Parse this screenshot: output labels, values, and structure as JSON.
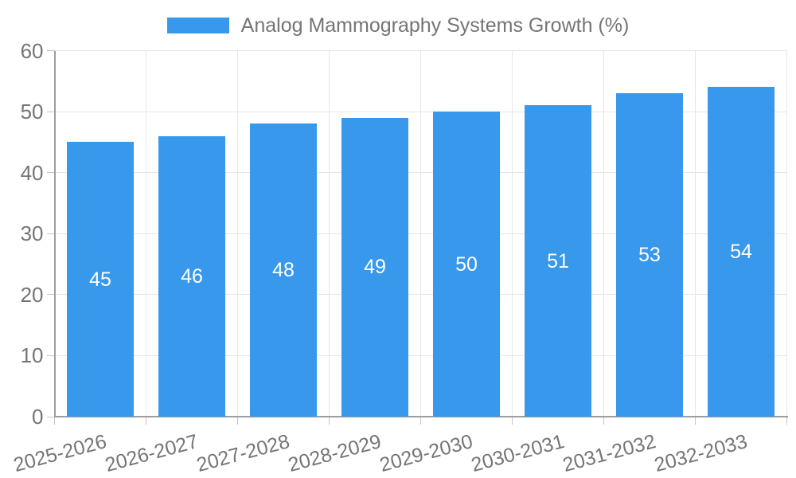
{
  "chart_data": {
    "type": "bar",
    "title": "Analog Mammography Systems Growth (%)",
    "legend_position": "top",
    "categories": [
      "2025-2026",
      "2026-2027",
      "2027-2028",
      "2028-2029",
      "2029-2030",
      "2030-2031",
      "2031-2032",
      "2032-2033"
    ],
    "values": [
      45,
      46,
      48,
      49,
      50,
      51,
      53,
      54
    ],
    "value_labels": [
      "45",
      "46",
      "48",
      "49",
      "50",
      "51",
      "53",
      "54"
    ],
    "xlabel": "",
    "ylabel": "",
    "ylim": [
      0,
      60
    ],
    "y_ticks": [
      0,
      10,
      20,
      30,
      40,
      50,
      60
    ],
    "grid": "on",
    "colors": {
      "bar": "#3898ec",
      "grid": "#e6e6e6",
      "axis": "#9e9e9e",
      "tick_mark": "#c4c4c4",
      "tick_text": "#757575",
      "title_text": "#757575",
      "value_text": "#ffffff",
      "background": "#ffffff"
    }
  }
}
